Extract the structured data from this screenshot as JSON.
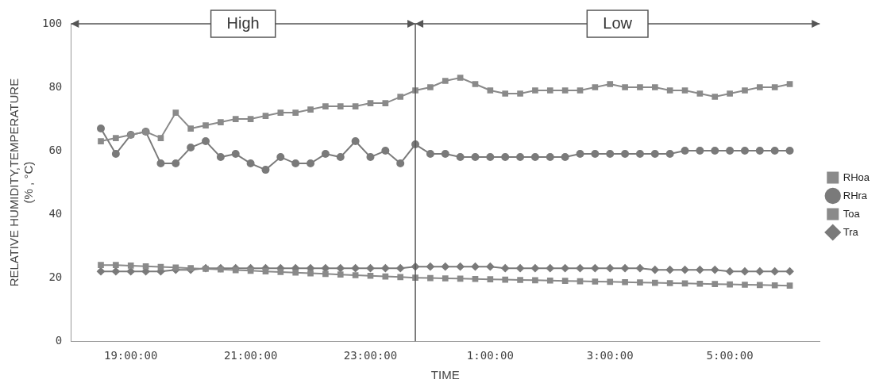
{
  "chart_data": {
    "type": "line",
    "xlabel": "TIME",
    "ylabel": [
      "RELATIVE HUMIDITY,TEMPERATURE",
      "(% , °C)"
    ],
    "x": [
      18.5,
      18.75,
      19,
      19.25,
      19.5,
      19.75,
      20,
      20.25,
      20.5,
      20.75,
      21,
      21.25,
      21.5,
      21.75,
      22,
      22.25,
      22.5,
      22.75,
      23,
      23.25,
      23.5,
      23.75,
      24,
      24.25,
      24.5,
      24.75,
      25,
      25.25,
      25.5,
      25.75,
      26,
      26.25,
      26.5,
      26.75,
      27,
      27.25,
      27.5,
      27.75,
      28,
      28.25,
      28.5,
      28.75,
      29,
      29.25,
      29.5,
      29.75,
      30
    ],
    "xlim": [
      18,
      30.5
    ],
    "xticks": [
      {
        "value": 19,
        "label": "19:00:00"
      },
      {
        "value": 21,
        "label": "21:00:00"
      },
      {
        "value": 23,
        "label": "23:00:00"
      },
      {
        "value": 25,
        "label": "1:00:00"
      },
      {
        "value": 27,
        "label": "3:00:00"
      },
      {
        "value": 29,
        "label": "5:00:00"
      }
    ],
    "ylim": [
      0,
      100
    ],
    "yticks": [
      0,
      20,
      40,
      60,
      80,
      100
    ],
    "grid": false,
    "legend": "right",
    "periods": [
      {
        "label": "High",
        "from": 18,
        "to": 23.75
      },
      {
        "label": "Low",
        "from": 23.75,
        "to": 30.5
      }
    ],
    "series": [
      {
        "name": "RHoa",
        "color": "#8a8a8a",
        "marker": "square",
        "values": [
          63,
          64,
          65,
          66,
          64,
          72,
          67,
          68,
          69,
          70,
          70,
          71,
          72,
          72,
          73,
          74,
          74,
          74,
          75,
          75,
          77,
          79,
          80,
          82,
          83,
          81,
          79,
          78,
          78,
          79,
          79,
          79,
          79,
          80,
          81,
          80,
          80,
          80,
          79,
          79,
          78,
          77,
          78,
          79,
          80,
          80,
          81
        ]
      },
      {
        "name": "RHra",
        "color": "#7a7a7a",
        "marker": "circle",
        "values": [
          67,
          59,
          65,
          66,
          56,
          56,
          61,
          63,
          58,
          59,
          56,
          54,
          58,
          56,
          56,
          59,
          58,
          63,
          58,
          60,
          56,
          62,
          59,
          59,
          58,
          58,
          58,
          58,
          58,
          58,
          58,
          58,
          59,
          59,
          59,
          59,
          59,
          59,
          59,
          60,
          60,
          60,
          60,
          60,
          60,
          60,
          60
        ]
      },
      {
        "name": "Toa",
        "color": "#8a8a8a",
        "marker": "square",
        "values": [
          24,
          24,
          23.8,
          23.6,
          23.4,
          23.2,
          23,
          22.8,
          22.6,
          22.4,
          22.2,
          22,
          21.8,
          21.6,
          21.4,
          21.2,
          21,
          20.8,
          20.6,
          20.4,
          20.2,
          20,
          19.9,
          19.8,
          19.7,
          19.6,
          19.5,
          19.4,
          19.3,
          19.2,
          19.1,
          19,
          18.9,
          18.8,
          18.7,
          18.6,
          18.5,
          18.4,
          18.3,
          18.2,
          18.1,
          18,
          17.9,
          17.8,
          17.7,
          17.6,
          17.5
        ]
      },
      {
        "name": "Tra",
        "color": "#7a7a7a",
        "marker": "diamond",
        "values": [
          22,
          22,
          22,
          22,
          22,
          22.5,
          22.5,
          23,
          23,
          23,
          23,
          23,
          23,
          23,
          23,
          23,
          23,
          23,
          23,
          23,
          23,
          23.5,
          23.5,
          23.5,
          23.5,
          23.5,
          23.5,
          23,
          23,
          23,
          23,
          23,
          23,
          23,
          23,
          23,
          23,
          22.5,
          22.5,
          22.5,
          22.5,
          22.5,
          22,
          22,
          22,
          22,
          22
        ]
      }
    ]
  }
}
